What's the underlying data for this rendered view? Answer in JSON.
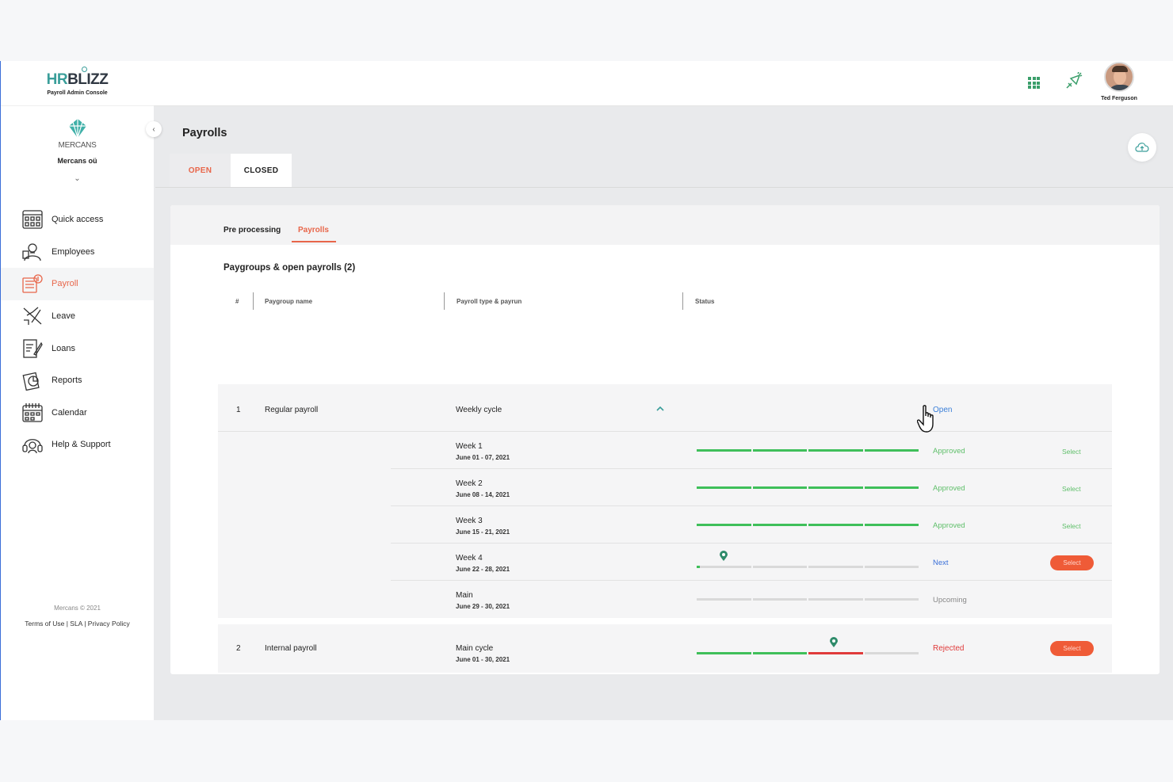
{
  "brand": {
    "hr": "HR",
    "blizz": "BLIZZ",
    "subtitle": "Payroll Admin Console"
  },
  "company": {
    "name": "MERCANS",
    "entity": "Mercans oü"
  },
  "nav": [
    {
      "label": "Quick access",
      "icon": "grid-calendar-icon"
    },
    {
      "label": "Employees",
      "icon": "employees-icon"
    },
    {
      "label": "Payroll",
      "icon": "payroll-icon",
      "active": true
    },
    {
      "label": "Leave",
      "icon": "plane-icon"
    },
    {
      "label": "Loans",
      "icon": "document-pen-icon"
    },
    {
      "label": "Reports",
      "icon": "reports-icon"
    },
    {
      "label": "Calendar",
      "icon": "calendar-icon"
    },
    {
      "label": "Help & Support",
      "icon": "headset-icon"
    }
  ],
  "footer": {
    "copyright": "Mercans © 2021",
    "links": "Terms of Use | SLA | Privacy Policy"
  },
  "header": {
    "user_name": "Ted Ferguson"
  },
  "page": {
    "title": "Payrolls",
    "tabs": {
      "open": "OPEN",
      "closed": "CLOSED"
    },
    "sub_tabs": {
      "pre": "Pre processing",
      "payrolls": "Payrolls"
    },
    "section_title": "Paygroups & open payrolls (2)",
    "columns": {
      "num": "#",
      "paygroup": "Paygroup name",
      "type": "Payroll type & payrun",
      "status": "Status"
    }
  },
  "rows": [
    {
      "num": "1",
      "paygroup": "Regular payroll",
      "type": "Weekly cycle",
      "status": "Open",
      "children": [
        {
          "name": "Week 1",
          "dates": "June 01 - 07, 2021",
          "status": "Approved",
          "action": "Select",
          "progress": [
            1,
            1,
            1,
            1
          ]
        },
        {
          "name": "Week 2",
          "dates": "June 08 - 14, 2021",
          "status": "Approved",
          "action": "Select",
          "progress": [
            1,
            1,
            1,
            1
          ]
        },
        {
          "name": "Week 3",
          "dates": "June 15 - 21, 2021",
          "status": "Approved",
          "action": "Select",
          "progress": [
            1,
            1,
            1,
            1
          ]
        },
        {
          "name": "Week 4",
          "dates": "June 22 - 28, 2021",
          "status": "Next",
          "action": "Select",
          "progress": [
            0,
            0,
            0,
            0
          ]
        },
        {
          "name": "Main",
          "dates": "June 29 - 30, 2021",
          "status": "Upcoming",
          "progress": [
            0,
            0,
            0,
            0
          ]
        }
      ]
    },
    {
      "num": "2",
      "paygroup": "Internal payroll",
      "type": "Main cycle",
      "dates": "June 01 - 30, 2021",
      "status": "Rejected",
      "action": "Select",
      "progress": [
        1,
        1,
        2,
        0
      ]
    }
  ],
  "colors": {
    "accent": "#e8664a",
    "teal": "#3a9e9a",
    "approved": "#3fbf5a",
    "rejected": "#e03b3b",
    "open": "#3a7fd8"
  }
}
